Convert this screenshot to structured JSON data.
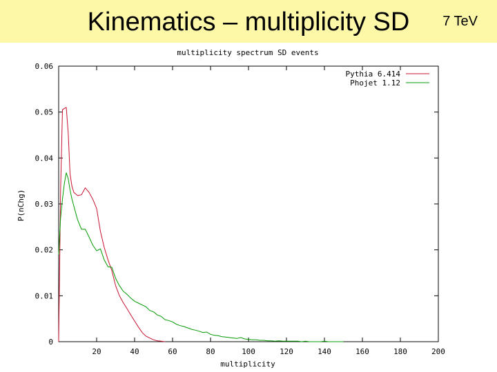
{
  "slide": {
    "title": "Kinematics – multiplicity SD",
    "energy": "7 TeV",
    "background_color": "#fcf8a8"
  },
  "chart_data": {
    "type": "line",
    "title": "multiplicity spectrum SD events",
    "xlabel": "multiplicity",
    "ylabel": "P(nChg)",
    "xlim": [
      0,
      200
    ],
    "ylim": [
      0,
      0.06
    ],
    "xticks": [
      20,
      40,
      60,
      80,
      100,
      120,
      140,
      160,
      180,
      200
    ],
    "xtick_labels": [
      "20",
      "40",
      "60",
      "80",
      "100",
      "120",
      "140",
      "160",
      "180",
      "200"
    ],
    "yticks": [
      0,
      0.01,
      0.02,
      0.03,
      0.04,
      0.05,
      0.06
    ],
    "ytick_labels": [
      "0",
      "0.01",
      "0.02",
      "0.03",
      "0.04",
      "0.05",
      "0.06"
    ],
    "grid": false,
    "legend_position": "top-right",
    "series": [
      {
        "name": "Pythia 6.414",
        "color": "#c8102e",
        "x": [
          0,
          1,
          2,
          3,
          4,
          5,
          6,
          7,
          8,
          10,
          12,
          14,
          16,
          18,
          20,
          22,
          24,
          26,
          28,
          30,
          32,
          34,
          36,
          38,
          40,
          42,
          44,
          46,
          48,
          50,
          52,
          54,
          56
        ],
        "y": [
          0.0,
          0.033,
          0.0505,
          0.0508,
          0.051,
          0.0455,
          0.0365,
          0.0338,
          0.0325,
          0.0318,
          0.032,
          0.0335,
          0.0325,
          0.031,
          0.029,
          0.024,
          0.0205,
          0.0178,
          0.0155,
          0.0122,
          0.01,
          0.0085,
          0.0072,
          0.0058,
          0.0045,
          0.0032,
          0.002,
          0.0012,
          0.0008,
          0.0004,
          0.0002,
          0.0001,
          0.0
        ]
      },
      {
        "name": "Phojet 1.12",
        "color": "#009900",
        "x": [
          0,
          1,
          2,
          3,
          4,
          5,
          6,
          7,
          8,
          10,
          12,
          14,
          16,
          18,
          20,
          22,
          24,
          26,
          28,
          30,
          32,
          34,
          36,
          38,
          40,
          42,
          44,
          46,
          48,
          50,
          52,
          54,
          56,
          58,
          60,
          62,
          64,
          66,
          68,
          70,
          72,
          74,
          76,
          78,
          80,
          82,
          84,
          86,
          88,
          90,
          92,
          94,
          96,
          98,
          100,
          102,
          104,
          106,
          108,
          110,
          112,
          114,
          116,
          118,
          120,
          122,
          124,
          126,
          128,
          130,
          132,
          134,
          136,
          138,
          140,
          142,
          144,
          146,
          148,
          150
        ],
        "y": [
          0.019,
          0.027,
          0.031,
          0.0345,
          0.0368,
          0.0355,
          0.033,
          0.031,
          0.0295,
          0.0265,
          0.0245,
          0.0245,
          0.0228,
          0.021,
          0.0198,
          0.0202,
          0.0178,
          0.0163,
          0.0162,
          0.0138,
          0.0122,
          0.011,
          0.0103,
          0.0095,
          0.0088,
          0.0084,
          0.008,
          0.0076,
          0.0068,
          0.0065,
          0.0058,
          0.0055,
          0.0048,
          0.0046,
          0.0043,
          0.0038,
          0.0035,
          0.0033,
          0.003,
          0.0027,
          0.0025,
          0.0023,
          0.002,
          0.0021,
          0.0016,
          0.0014,
          0.0013,
          0.0011,
          0.001,
          0.0009,
          0.0008,
          0.0007,
          0.0009,
          0.0006,
          0.0005,
          0.0004,
          0.0004,
          0.0003,
          0.0003,
          0.0002,
          0.0002,
          0.0001,
          0.0002,
          0.0001,
          0.0001,
          0.0001,
          0.0001,
          0.0001,
          0.0,
          0.0001,
          0.0,
          0.0,
          0.0,
          0.0,
          0.0001,
          0.0,
          0.0,
          0.0,
          0.0,
          0.0
        ]
      }
    ]
  }
}
